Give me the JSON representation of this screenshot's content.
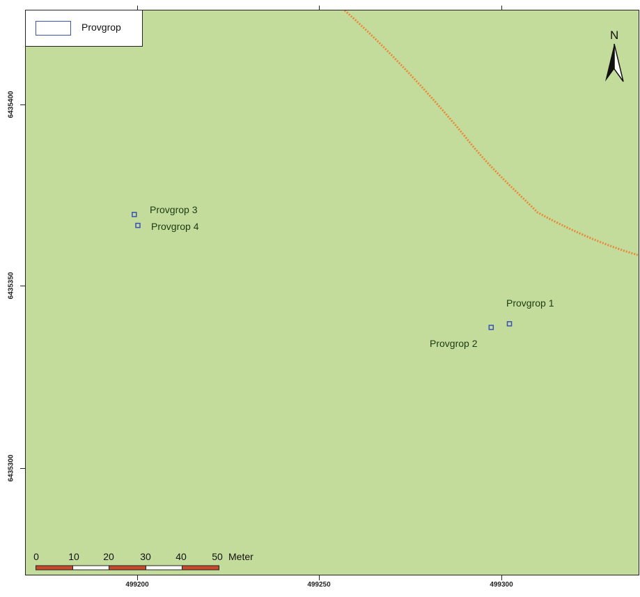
{
  "legend": {
    "label": "Provgrop",
    "swatch_color": "#3b4fb5"
  },
  "map": {
    "background_color": "#c3dc9b",
    "road_color": "#e8893a"
  },
  "axes": {
    "x_ticks": [
      "499200",
      "499250",
      "499300"
    ],
    "y_ticks": [
      "6435400",
      "6435350",
      "6435300"
    ]
  },
  "features": [
    {
      "name": "Provgrop 1",
      "easting": 499302,
      "northing": 6435340
    },
    {
      "name": "Provgrop 2",
      "easting": 499297,
      "northing": 6435339
    },
    {
      "name": "Provgrop 3",
      "easting": 499199,
      "northing": 6435370
    },
    {
      "name": "Provgrop 4",
      "easting": 499200,
      "northing": 6435367
    }
  ],
  "north_arrow": {
    "letter": "N",
    "icon": "north-arrow-icon"
  },
  "scale_bar": {
    "labels": [
      "0",
      "10",
      "20",
      "30",
      "40",
      "50"
    ],
    "unit": "Meter",
    "fill_color": "#c8492a"
  }
}
